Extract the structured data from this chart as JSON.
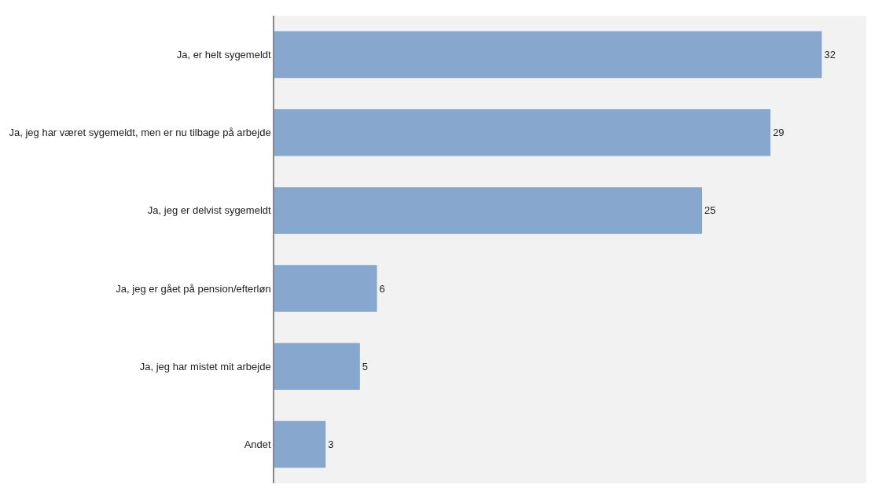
{
  "chart_data": {
    "type": "bar",
    "orientation": "horizontal",
    "categories": [
      "Ja, er helt sygemeldt",
      "Ja, jeg har været sygemeldt, men er nu tilbage på arbejde",
      "Ja, jeg er delvist sygemeldt",
      "Ja, jeg er gået på pension/efterløn",
      "Ja, jeg har mistet mit arbejde",
      "Andet"
    ],
    "values": [
      32,
      29,
      25,
      6,
      5,
      3
    ],
    "color": "#87a7cf",
    "xlim": [
      0,
      34.6
    ],
    "data_labels": true,
    "tick_labels": "y",
    "grid": false,
    "legend": false
  }
}
